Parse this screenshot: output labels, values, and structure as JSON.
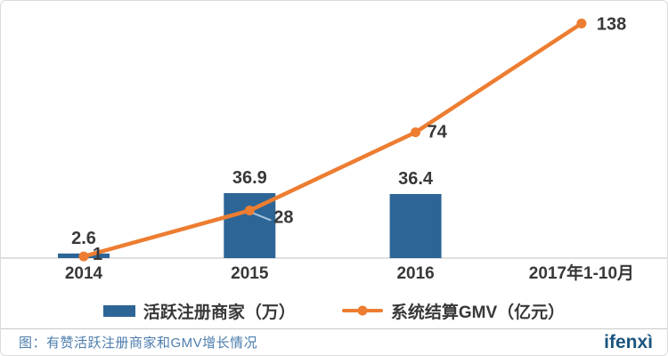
{
  "chart_data": {
    "type": "bar+line",
    "title": "",
    "categories": [
      "2014",
      "2015",
      "2016",
      "2017年1-10月"
    ],
    "series": [
      {
        "name": "活跃注册商家（万）",
        "type": "bar",
        "color": "#2d6596",
        "values": [
          2.6,
          36.9,
          36.4,
          null
        ]
      },
      {
        "name": "系统结算GMV（亿元）",
        "type": "line",
        "color": "#ed7d31",
        "values": [
          1,
          28,
          74,
          138
        ]
      }
    ],
    "value_labels": true,
    "bar_ylim": [
      0,
      140
    ],
    "line_ylim": [
      0,
      145
    ],
    "grid": false,
    "legend_position": "bottom",
    "axis_color": "#d6d6d6",
    "leader_color": "#a9c5e3",
    "label_color": "#383838"
  },
  "footer": {
    "caption": "图：有赞活跃注册商家和GMV增长情况",
    "logo": "ifenxì"
  }
}
